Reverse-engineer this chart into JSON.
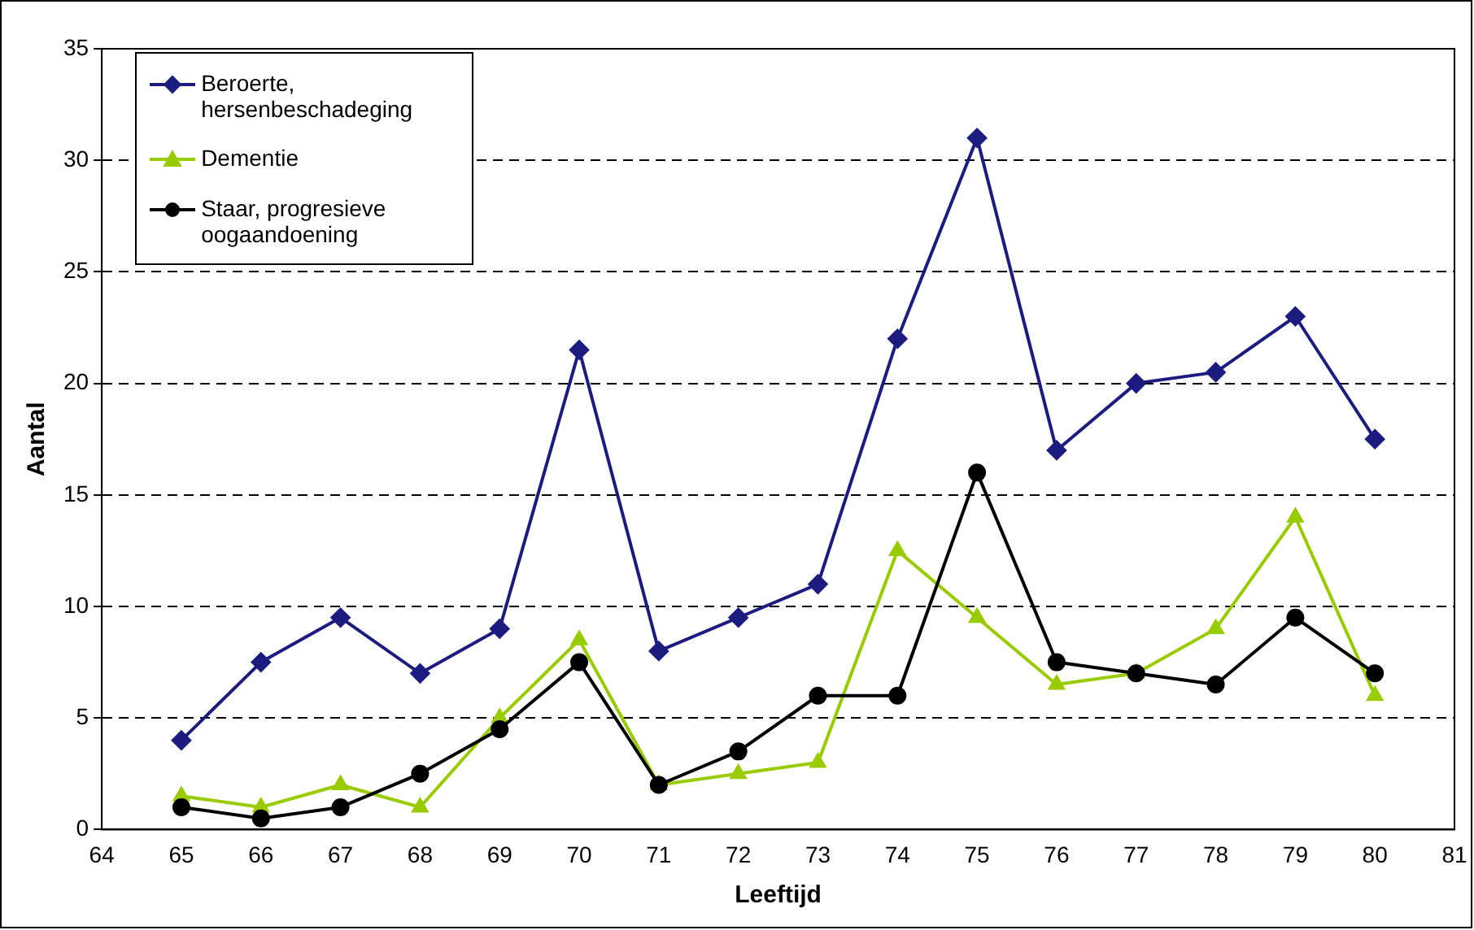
{
  "chart_data": {
    "type": "line",
    "xlabel": "Leeftijd",
    "ylabel": "Aantal",
    "x": [
      65,
      66,
      67,
      68,
      69,
      70,
      71,
      72,
      73,
      74,
      75,
      76,
      77,
      78,
      79,
      80
    ],
    "series": [
      {
        "name": "Beroerte, hersenbeschadeging",
        "color": "#1c1c80",
        "marker": "diamond",
        "values": [
          4,
          7.5,
          9.5,
          7,
          9,
          21.5,
          8,
          9.5,
          11,
          22,
          31,
          17,
          20,
          20.5,
          23,
          17.5
        ]
      },
      {
        "name": "Dementie",
        "color": "#99cc00",
        "marker": "triangle",
        "values": [
          1.5,
          1,
          2,
          1,
          5,
          8.5,
          2,
          2.5,
          3,
          12.5,
          9.5,
          6.5,
          7,
          9,
          14,
          6
        ]
      },
      {
        "name": "Staar, progresieve oogaandoening",
        "color": "#000000",
        "marker": "circle",
        "values": [
          1,
          0.5,
          1,
          2.5,
          4.5,
          7.5,
          2,
          3.5,
          6,
          6,
          16,
          7.5,
          7,
          6.5,
          9.5,
          7
        ]
      }
    ],
    "xlim": [
      64,
      81
    ],
    "xticks": [
      64,
      65,
      66,
      67,
      68,
      69,
      70,
      71,
      72,
      73,
      74,
      75,
      76,
      77,
      78,
      79,
      80,
      81
    ],
    "ylim": [
      0,
      35
    ],
    "yticks": [
      0,
      5,
      10,
      15,
      20,
      25,
      30,
      35
    ],
    "grid": "y",
    "legend": "top left",
    "line_style": "solid"
  }
}
